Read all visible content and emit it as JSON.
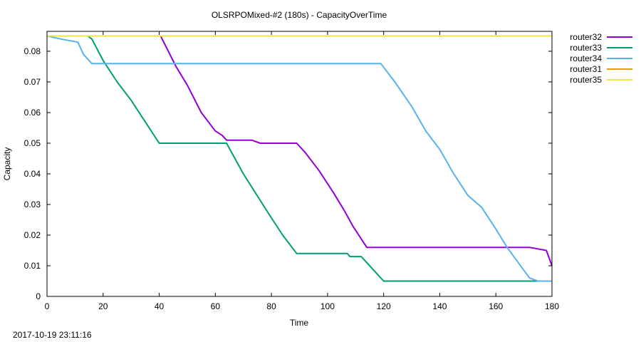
{
  "chart_data": {
    "type": "line",
    "title": "OLSRPOMixed-#2 (180s) - CapacityOverTime",
    "xlabel": "Time",
    "ylabel": "Capacity",
    "xlim": [
      0,
      180
    ],
    "ylim": [
      0,
      0.0865
    ],
    "x_ticks": [
      0,
      20,
      40,
      60,
      80,
      100,
      120,
      140,
      160,
      180
    ],
    "y_ticks": [
      0,
      0.01,
      0.02,
      0.03,
      0.04,
      0.05,
      0.06,
      0.07,
      0.08
    ],
    "x_tick_labels": [
      "0",
      "20",
      "40",
      "60",
      "80",
      "100",
      "120",
      "140",
      "160",
      "180"
    ],
    "y_tick_labels": [
      "0",
      "0.01",
      "0.02",
      "0.03",
      "0.04",
      "0.05",
      "0.06",
      "0.07",
      "0.08"
    ],
    "grid": false,
    "legend_position": "outside-right-top",
    "series": [
      {
        "name": "router32",
        "color": "#9400d3",
        "points": [
          [
            40.5,
            0.085
          ],
          [
            46,
            0.075
          ],
          [
            50,
            0.069
          ],
          [
            55,
            0.06
          ],
          [
            60,
            0.054
          ],
          [
            62.5,
            0.0525
          ],
          [
            64,
            0.051
          ],
          [
            73,
            0.051
          ],
          [
            76,
            0.05
          ],
          [
            89,
            0.05
          ],
          [
            92,
            0.047
          ],
          [
            97,
            0.041
          ],
          [
            102,
            0.034
          ],
          [
            106,
            0.028
          ],
          [
            109,
            0.023
          ],
          [
            114,
            0.016
          ],
          [
            172,
            0.016
          ],
          [
            178,
            0.015
          ],
          [
            180,
            0.01
          ]
        ]
      },
      {
        "name": "router33",
        "color": "#009e73",
        "points": [
          [
            14.5,
            0.085
          ],
          [
            16,
            0.084
          ],
          [
            20,
            0.077
          ],
          [
            25,
            0.07
          ],
          [
            30,
            0.064
          ],
          [
            35,
            0.057
          ],
          [
            40,
            0.05
          ],
          [
            64,
            0.05
          ],
          [
            70,
            0.04
          ],
          [
            79,
            0.027
          ],
          [
            84,
            0.02
          ],
          [
            89,
            0.014
          ],
          [
            107,
            0.014
          ],
          [
            108,
            0.013
          ],
          [
            112,
            0.013
          ],
          [
            120,
            0.005
          ],
          [
            180,
            0.005
          ]
        ]
      },
      {
        "name": "router34",
        "color": "#56b4e9",
        "points": [
          [
            0,
            0.085
          ],
          [
            5,
            0.084
          ],
          [
            11,
            0.083
          ],
          [
            13,
            0.079
          ],
          [
            16,
            0.076
          ],
          [
            119,
            0.076
          ],
          [
            124,
            0.07
          ],
          [
            130,
            0.062
          ],
          [
            135,
            0.054
          ],
          [
            140,
            0.048
          ],
          [
            145,
            0.04
          ],
          [
            150,
            0.033
          ],
          [
            155,
            0.029
          ],
          [
            160,
            0.022
          ],
          [
            164,
            0.016
          ],
          [
            168,
            0.011
          ],
          [
            172,
            0.006
          ],
          [
            175,
            0.005
          ],
          [
            180,
            0.005
          ]
        ]
      },
      {
        "name": "router31",
        "color": "#e69f00",
        "points": [
          [
            0,
            0.085
          ],
          [
            180,
            0.085
          ]
        ]
      },
      {
        "name": "router35",
        "color": "#f0e442",
        "points": [
          [
            0,
            0.085
          ],
          [
            180,
            0.085
          ]
        ]
      }
    ]
  },
  "footer": {
    "timestamp": "2017-10-19 23:11:16"
  }
}
